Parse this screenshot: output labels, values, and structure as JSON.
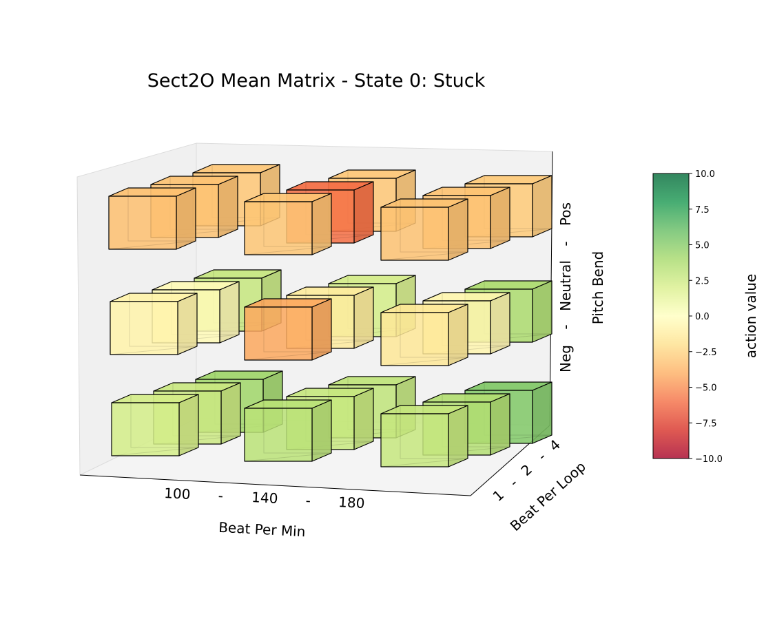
{
  "chart_data": {
    "type": "3d-bar",
    "title": "Sect2O Mean Matrix - State 0: Stuck",
    "xlabel": "Beat Per Min",
    "ylabel": "Beat Per Loop",
    "zlabel": "Pitch Bend",
    "x_tick_labels": [
      "100",
      "-",
      "140",
      "-",
      "180"
    ],
    "y_tick_labels": [
      "1",
      "-",
      "2",
      "-",
      "4"
    ],
    "z_tick_labels": [
      "Neg",
      "-",
      "Neutral",
      "-",
      "Pos"
    ],
    "x_categories": [
      "100",
      "140",
      "180"
    ],
    "y_categories": [
      "1",
      "2",
      "4"
    ],
    "z_categories": [
      "Neg",
      "Neutral",
      "Pos"
    ],
    "colormap": "RdYlGn",
    "colorbar": {
      "label": "action value",
      "range": [
        -10,
        10
      ],
      "ticks": [
        "10.0",
        "7.5",
        "5.0",
        "2.5",
        "0.0",
        "−2.5",
        "−5.0",
        "−7.5",
        "−10.0"
      ],
      "tick_values": [
        10,
        7.5,
        5,
        2.5,
        0,
        -2.5,
        -5,
        -7.5,
        -10
      ]
    },
    "cells": [
      {
        "bpm": "100",
        "loop": "1",
        "pitch": "Neg",
        "value": 2.2
      },
      {
        "bpm": "100",
        "loop": "2",
        "pitch": "Neg",
        "value": 2.6
      },
      {
        "bpm": "100",
        "loop": "4",
        "pitch": "Neg",
        "value": 4.2
      },
      {
        "bpm": "140",
        "loop": "1",
        "pitch": "Neg",
        "value": 3.2
      },
      {
        "bpm": "140",
        "loop": "2",
        "pitch": "Neg",
        "value": 2.7
      },
      {
        "bpm": "140",
        "loop": "4",
        "pitch": "Neg",
        "value": 3.0
      },
      {
        "bpm": "180",
        "loop": "1",
        "pitch": "Neg",
        "value": 2.8
      },
      {
        "bpm": "180",
        "loop": "2",
        "pitch": "Neg",
        "value": 3.5
      },
      {
        "bpm": "180",
        "loop": "4",
        "pitch": "Neg",
        "value": 5.2
      },
      {
        "bpm": "100",
        "loop": "1",
        "pitch": "Neutral",
        "value": -0.8
      },
      {
        "bpm": "100",
        "loop": "2",
        "pitch": "Neutral",
        "value": -0.3
      },
      {
        "bpm": "100",
        "loop": "4",
        "pitch": "Neutral",
        "value": 2.8
      },
      {
        "bpm": "140",
        "loop": "1",
        "pitch": "Neutral",
        "value": -4.2
      },
      {
        "bpm": "140",
        "loop": "2",
        "pitch": "Neutral",
        "value": -1.3
      },
      {
        "bpm": "140",
        "loop": "4",
        "pitch": "Neutral",
        "value": 2.2
      },
      {
        "bpm": "180",
        "loop": "1",
        "pitch": "Neutral",
        "value": -1.5
      },
      {
        "bpm": "180",
        "loop": "2",
        "pitch": "Neutral",
        "value": -0.6
      },
      {
        "bpm": "180",
        "loop": "4",
        "pitch": "Neutral",
        "value": 3.8
      },
      {
        "bpm": "100",
        "loop": "1",
        "pitch": "Pos",
        "value": -3.3
      },
      {
        "bpm": "100",
        "loop": "2",
        "pitch": "Pos",
        "value": -3.2
      },
      {
        "bpm": "100",
        "loop": "4",
        "pitch": "Pos",
        "value": -3.0
      },
      {
        "bpm": "140",
        "loop": "1",
        "pitch": "Pos",
        "value": -3.1
      },
      {
        "bpm": "140",
        "loop": "2",
        "pitch": "Pos",
        "value": -6.0
      },
      {
        "bpm": "140",
        "loop": "4",
        "pitch": "Pos",
        "value": -3.0
      },
      {
        "bpm": "180",
        "loop": "1",
        "pitch": "Pos",
        "value": -3.2
      },
      {
        "bpm": "180",
        "loop": "2",
        "pitch": "Pos",
        "value": -3.2
      },
      {
        "bpm": "180",
        "loop": "4",
        "pitch": "Pos",
        "value": -2.9
      }
    ]
  }
}
